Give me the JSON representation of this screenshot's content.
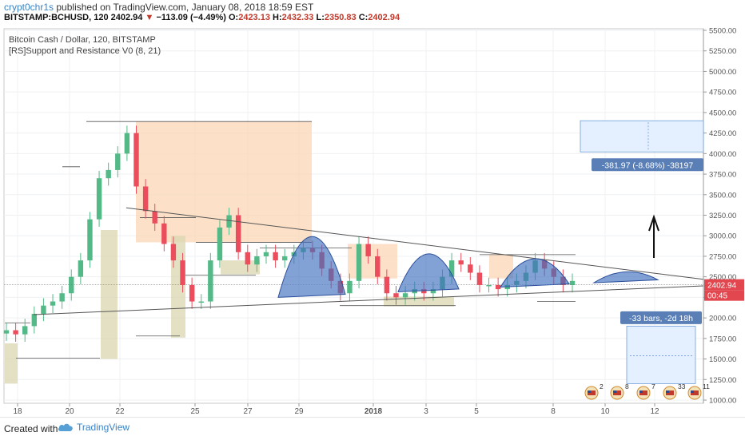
{
  "header": {
    "author": "crypt0chr1s",
    "published_text": "published on TradingView.com, January 08, 2018 18:59 EST",
    "symbol": "BITSTAMP:BCHUSD, 120",
    "last": "2402.94",
    "change": "−113.09 (−4.49%)",
    "open_label": "O:",
    "open": "2423.13",
    "high_label": "H:",
    "high": "2432.33",
    "low_label": "L:",
    "low": "2350.83",
    "close_label": "C:",
    "close": "2402.94"
  },
  "legend": {
    "title": "Bitcoin Cash / Dollar, 120, BITSTAMP",
    "indicator": "[RS]Support and Resistance V0 (8, 21)"
  },
  "footer": {
    "created_with": "Created with",
    "brand": "TradingView"
  },
  "chart_data": {
    "type": "line",
    "price_axis": [
      "5500.00",
      "5250.00",
      "5000.00",
      "4750.00",
      "4500.00",
      "4250.00",
      "4000.00",
      "3750.00",
      "3500.00",
      "3250.00",
      "3000.00",
      "2750.00",
      "2500.00",
      "2250.00",
      "2000.00",
      "1750.00",
      "1500.00",
      "1250.00",
      "1000.00"
    ],
    "time_axis": [
      "18",
      "20",
      "22",
      "25",
      "27",
      "29",
      "2018",
      "3",
      "5",
      "8",
      "10",
      "12"
    ],
    "current_price_label": "2402.94",
    "countdown_label": "00:45",
    "measure_price_label": "-381.97 (-8.68%) -38197",
    "measure_bars_label": "-33 bars, -2d 18h",
    "event_counts": [
      "2",
      "8",
      "7",
      "33",
      "11"
    ],
    "series": [
      {
        "values": [
          1850,
          1800,
          1900,
          2050,
          2150,
          2200,
          2300,
          2500,
          2700,
          3200,
          3700,
          3800,
          4000,
          4250,
          3600,
          3300,
          3150,
          2900,
          2700,
          2400,
          2200,
          2200,
          2700,
          3100,
          3250,
          2800,
          2650,
          2750,
          2800,
          2700,
          2750,
          2800,
          2850,
          2800,
          2600,
          2450,
          2300,
          2450,
          2900,
          2750,
          2500,
          2300,
          2250,
          2300,
          2350,
          2300,
          2350,
          2500,
          2700,
          2650,
          2550,
          2400,
          2400,
          2350,
          2400,
          2450,
          2550,
          2700,
          2600,
          2500,
          2400,
          2450
        ]
      }
    ],
    "ylim": [
      1000,
      5500
    ],
    "grid": true
  }
}
